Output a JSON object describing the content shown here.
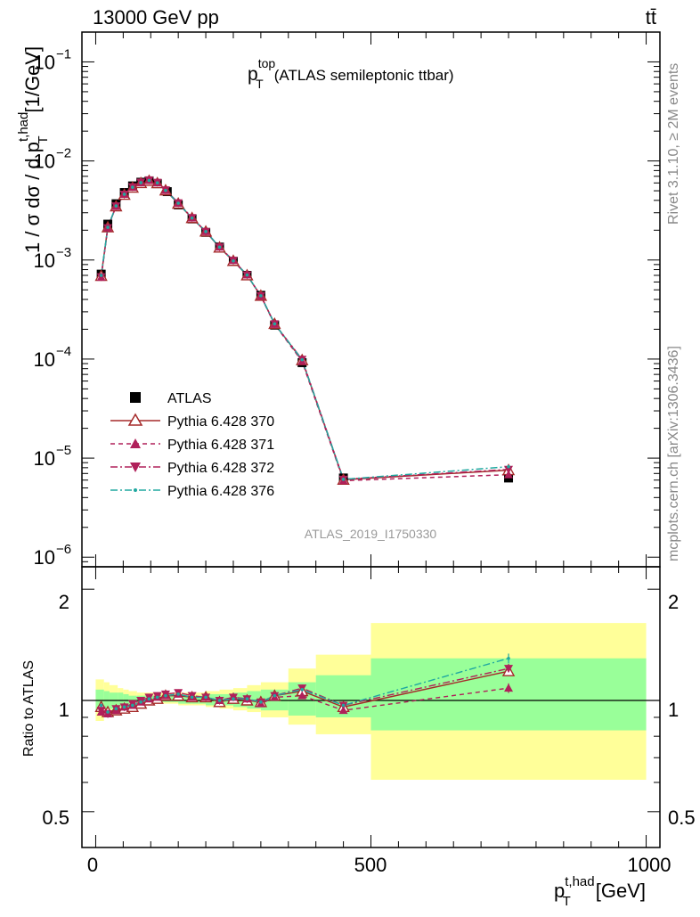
{
  "header": {
    "energy_label": "13000 GeV pp",
    "process_label": "tt̄"
  },
  "side_labels": {
    "rivet": "Rivet 3.1.10, ≥ 2M events",
    "mcplots": "mcplots.cern.ch [arXiv:1306.3436]"
  },
  "top_panel": {
    "title_main": "p",
    "title_sup": "top",
    "title_sub": "T",
    "title_rest": "(ATLAS semileptonic ttbar)",
    "ylabel": "1 / σ dσ / d p",
    "ylabel_sup": "t,had",
    "ylabel_sub": "T",
    "ylabel_unit": "[1/GeV]",
    "watermark": "ATLAS_2019_I1750330",
    "y_ticks": [
      {
        "base": "10",
        "exp": "−1",
        "value": 0.1
      },
      {
        "base": "10",
        "exp": "−2",
        "value": 0.01
      },
      {
        "base": "10",
        "exp": "−3",
        "value": 0.001
      },
      {
        "base": "10",
        "exp": "−4",
        "value": 0.0001
      },
      {
        "base": "10",
        "exp": "−5",
        "value": 1e-05
      },
      {
        "base": "10",
        "exp": "−6",
        "value": 1e-06
      }
    ]
  },
  "bottom_panel": {
    "ylabel": "Ratio to ATLAS",
    "y_ticks": [
      "2",
      "1",
      "0.5"
    ],
    "xlabel": "p",
    "xlabel_sup": "t,had",
    "xlabel_sub": "T",
    "xlabel_unit": "[GeV]",
    "x_ticks": [
      "0",
      "500",
      "1000"
    ]
  },
  "legend": [
    {
      "label": "ATLAS",
      "color": "#000000",
      "marker": "square",
      "dash": "none"
    },
    {
      "label": "Pythia 6.428 370",
      "color": "#a52a2a",
      "marker": "triangle-open",
      "dash": "solid"
    },
    {
      "label": "Pythia 6.428 371",
      "color": "#b0205a",
      "marker": "triangle-up",
      "dash": "dashed"
    },
    {
      "label": "Pythia 6.428 372",
      "color": "#b0205a",
      "marker": "triangle-down",
      "dash": "dashdot"
    },
    {
      "label": "Pythia 6.428 376",
      "color": "#20a8a0",
      "marker": "dot",
      "dash": "dashdot"
    }
  ],
  "chart_data": {
    "type": "scatter",
    "x_scale": "linear",
    "y_scale": "log",
    "xlim": [
      -25,
      1025
    ],
    "ylim_top": [
      8e-07,
      0.2
    ],
    "ylim_ratio": [
      0.4,
      2.3
    ],
    "bins": [
      [
        0,
        15
      ],
      [
        15,
        25
      ],
      [
        25,
        40
      ],
      [
        40,
        50
      ],
      [
        50,
        60
      ],
      [
        60,
        75
      ],
      [
        75,
        90
      ],
      [
        90,
        105
      ],
      [
        105,
        125
      ],
      [
        125,
        150
      ],
      [
        150,
        175
      ],
      [
        175,
        200
      ],
      [
        200,
        225
      ],
      [
        225,
        250
      ],
      [
        250,
        275
      ],
      [
        275,
        300
      ],
      [
        300,
        350
      ],
      [
        350,
        400
      ],
      [
        400,
        500
      ],
      [
        500,
        1000
      ]
    ],
    "x": [
      10,
      22,
      37,
      52,
      67,
      82,
      97,
      112,
      127,
      150,
      175,
      200,
      225,
      250,
      275,
      300,
      325,
      375,
      450,
      750
    ],
    "atlas": [
      0.00072,
      0.0023,
      0.0037,
      0.0048,
      0.0056,
      0.0061,
      0.0063,
      0.0059,
      0.0049,
      0.0036,
      0.0026,
      0.0019,
      0.00135,
      0.00097,
      0.0007,
      0.00044,
      0.00022,
      9.2e-05,
      6.3e-06,
      6.3e-06
    ],
    "atlas_x": [
      10,
      22,
      37,
      52,
      67,
      82,
      97,
      112,
      130,
      150,
      175,
      200,
      225,
      250,
      275,
      300,
      325,
      375,
      450,
      750
    ],
    "ratio_series": [
      {
        "name": "Pythia 6.428 370",
        "values": [
          0.96,
          0.93,
          0.94,
          0.95,
          0.96,
          0.98,
          1.0,
          1.01,
          1.03,
          1.03,
          1.02,
          1.02,
          0.99,
          1.01,
          1.0,
          0.99,
          1.03,
          1.06,
          0.96,
          1.2
        ]
      },
      {
        "name": "Pythia 6.428 371",
        "values": [
          0.93,
          0.92,
          0.94,
          0.96,
          0.97,
          0.99,
          1.01,
          1.02,
          1.03,
          1.04,
          1.02,
          1.02,
          1.0,
          1.02,
          1.01,
          0.98,
          1.02,
          1.03,
          0.94,
          1.08
        ]
      },
      {
        "name": "Pythia 6.428 372",
        "values": [
          0.94,
          0.92,
          0.95,
          0.96,
          0.98,
          1.0,
          1.02,
          1.03,
          1.04,
          1.05,
          1.03,
          1.02,
          1.0,
          1.02,
          1.01,
          0.99,
          1.03,
          1.08,
          0.97,
          1.22
        ]
      },
      {
        "name": "Pythia 6.428 376",
        "values": [
          0.97,
          0.93,
          0.95,
          0.96,
          0.97,
          0.99,
          1.01,
          1.02,
          1.03,
          1.04,
          1.02,
          1.02,
          1.0,
          1.01,
          1.01,
          0.99,
          1.03,
          1.07,
          0.97,
          1.3
        ]
      }
    ],
    "band_yellow": [
      [
        0.88,
        1.14
      ],
      [
        0.9,
        1.12
      ],
      [
        0.92,
        1.1
      ],
      [
        0.93,
        1.08
      ],
      [
        0.95,
        1.07
      ],
      [
        0.96,
        1.06
      ],
      [
        0.97,
        1.05
      ],
      [
        0.97,
        1.05
      ],
      [
        0.98,
        1.05
      ],
      [
        0.98,
        1.05
      ],
      [
        0.97,
        1.05
      ],
      [
        0.97,
        1.05
      ],
      [
        0.96,
        1.06
      ],
      [
        0.95,
        1.07
      ],
      [
        0.94,
        1.08
      ],
      [
        0.93,
        1.1
      ],
      [
        0.9,
        1.12
      ],
      [
        0.86,
        1.22
      ],
      [
        0.81,
        1.33
      ],
      [
        0.61,
        1.62
      ]
    ],
    "band_green": [
      [
        0.93,
        1.07
      ],
      [
        0.94,
        1.06
      ],
      [
        0.95,
        1.05
      ],
      [
        0.96,
        1.05
      ],
      [
        0.97,
        1.04
      ],
      [
        0.97,
        1.03
      ],
      [
        0.98,
        1.03
      ],
      [
        0.98,
        1.03
      ],
      [
        0.99,
        1.03
      ],
      [
        0.99,
        1.03
      ],
      [
        0.98,
        1.03
      ],
      [
        0.98,
        1.03
      ],
      [
        0.97,
        1.04
      ],
      [
        0.97,
        1.04
      ],
      [
        0.96,
        1.05
      ],
      [
        0.95,
        1.06
      ],
      [
        0.94,
        1.07
      ],
      [
        0.91,
        1.12
      ],
      [
        0.9,
        1.17
      ],
      [
        0.83,
        1.3
      ]
    ]
  }
}
